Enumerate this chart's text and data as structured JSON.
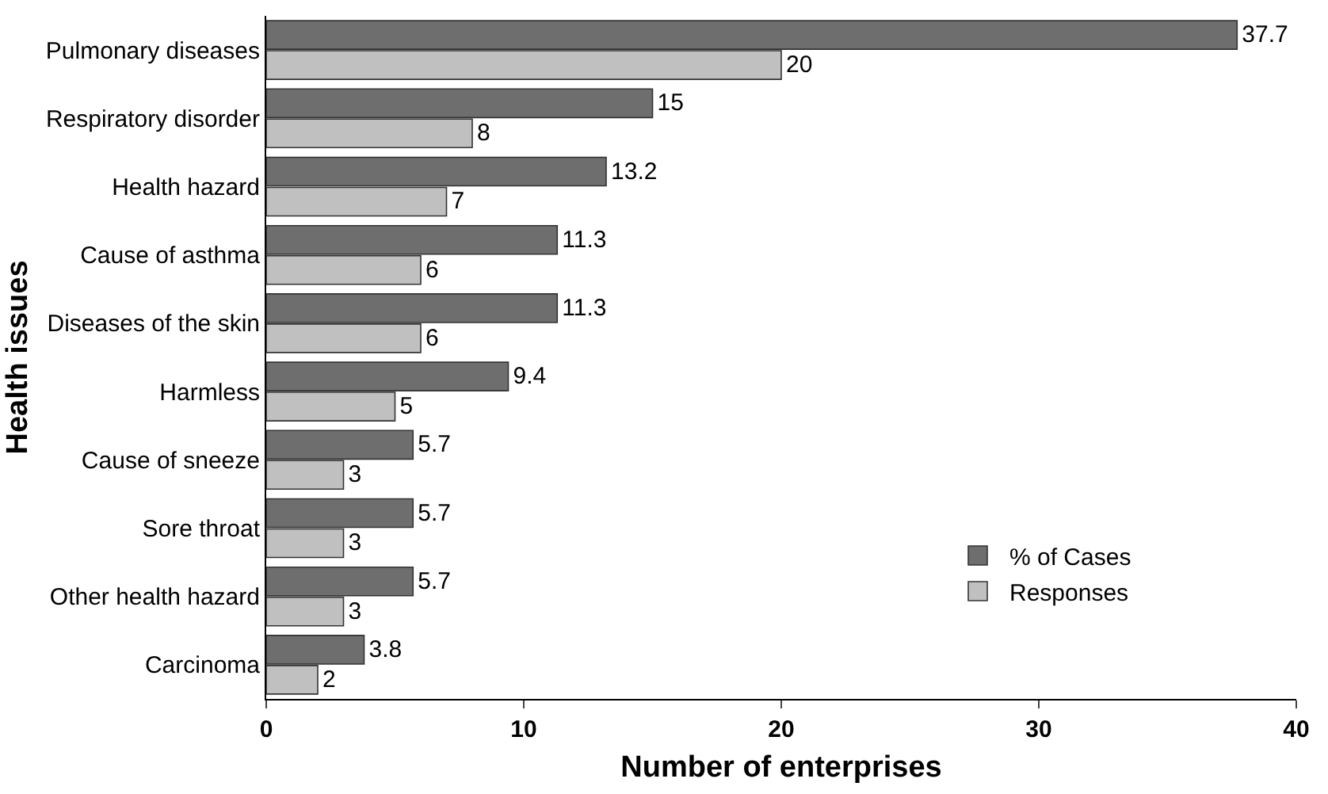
{
  "chart_data": {
    "type": "bar",
    "orientation": "horizontal",
    "xlabel": "Number of enterprises",
    "ylabel": "Health issues",
    "categories": [
      "Pulmonary diseases",
      "Respiratory disorder",
      "Health hazard",
      "Cause of asthma",
      "Diseases of the skin",
      "Harmless",
      "Cause of sneeze",
      "Sore throat",
      "Other health hazard",
      "Carcinoma"
    ],
    "series": [
      {
        "name": "% of Cases",
        "color": "#6e6e6e",
        "values": [
          37.7,
          15,
          13.2,
          11.3,
          11.3,
          9.4,
          5.7,
          5.7,
          5.7,
          3.8
        ]
      },
      {
        "name": "Responses",
        "color": "#c0c0c0",
        "values": [
          20,
          8,
          7,
          6,
          6,
          5,
          3,
          3,
          3,
          2
        ]
      }
    ],
    "xlim": [
      0,
      40
    ],
    "xticks": [
      0,
      10,
      20,
      30,
      40
    ],
    "data_labels": true,
    "legend": "bottom right"
  }
}
